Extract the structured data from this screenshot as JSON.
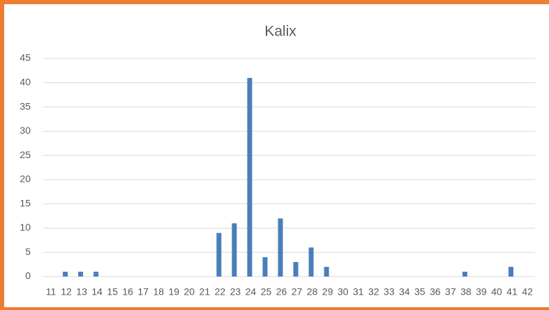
{
  "chart_data": {
    "type": "bar",
    "title": "Kalix",
    "categories": [
      "11",
      "12",
      "13",
      "14",
      "15",
      "16",
      "17",
      "18",
      "19",
      "20",
      "21",
      "22",
      "23",
      "24",
      "25",
      "26",
      "27",
      "28",
      "29",
      "30",
      "31",
      "32",
      "33",
      "34",
      "35",
      "36",
      "37",
      "38",
      "39",
      "40",
      "41",
      "42"
    ],
    "values": [
      0,
      1,
      1,
      1,
      0,
      0,
      0,
      0,
      0,
      0,
      0,
      9,
      11,
      41,
      4,
      12,
      3,
      6,
      2,
      0,
      0,
      0,
      0,
      0,
      0,
      0,
      0,
      1,
      0,
      0,
      2,
      0
    ],
    "color": "#4a7ebb",
    "ylim": [
      0,
      45
    ],
    "yticks": [
      0,
      5,
      10,
      15,
      20,
      25,
      30,
      35,
      40,
      45
    ],
    "grid": true
  }
}
